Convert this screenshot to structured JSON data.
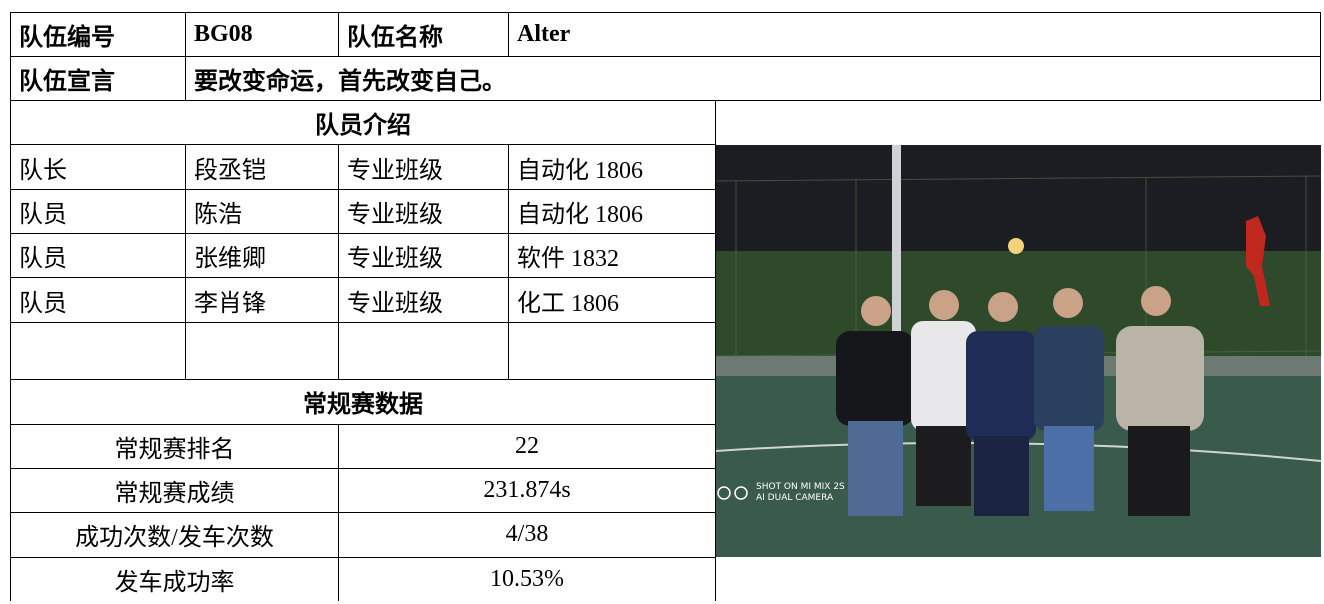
{
  "header": {
    "team_id_label": "队伍编号",
    "team_id": "BG08",
    "team_name_label": "队伍名称",
    "team_name": "Alter"
  },
  "slogan": {
    "label": "队伍宣言",
    "text": "要改变命运，首先改变自己。"
  },
  "members": {
    "title": "队员介绍",
    "rows": [
      [
        "队长",
        "段丞铠",
        "专业班级",
        "自动化 1806"
      ],
      [
        "队员",
        "陈浩",
        "专业班级",
        "自动化 1806"
      ],
      [
        "队员",
        "张维卿",
        "专业班级",
        "软件 1832"
      ],
      [
        "队员",
        "李肖锋",
        "专业班级",
        "化工 1806"
      ]
    ]
  },
  "stats": {
    "title": "常规赛数据",
    "rows": [
      [
        "常规赛排名",
        "22"
      ],
      [
        "常规赛成绩",
        "231.874s"
      ],
      [
        "成功次数/发车次数",
        "4/38"
      ],
      [
        "发车成功率",
        "10.53%"
      ]
    ]
  },
  "photo": {
    "watermark": [
      "SHOT ON MI MIX 2S",
      "AI DUAL CAMERA"
    ]
  }
}
